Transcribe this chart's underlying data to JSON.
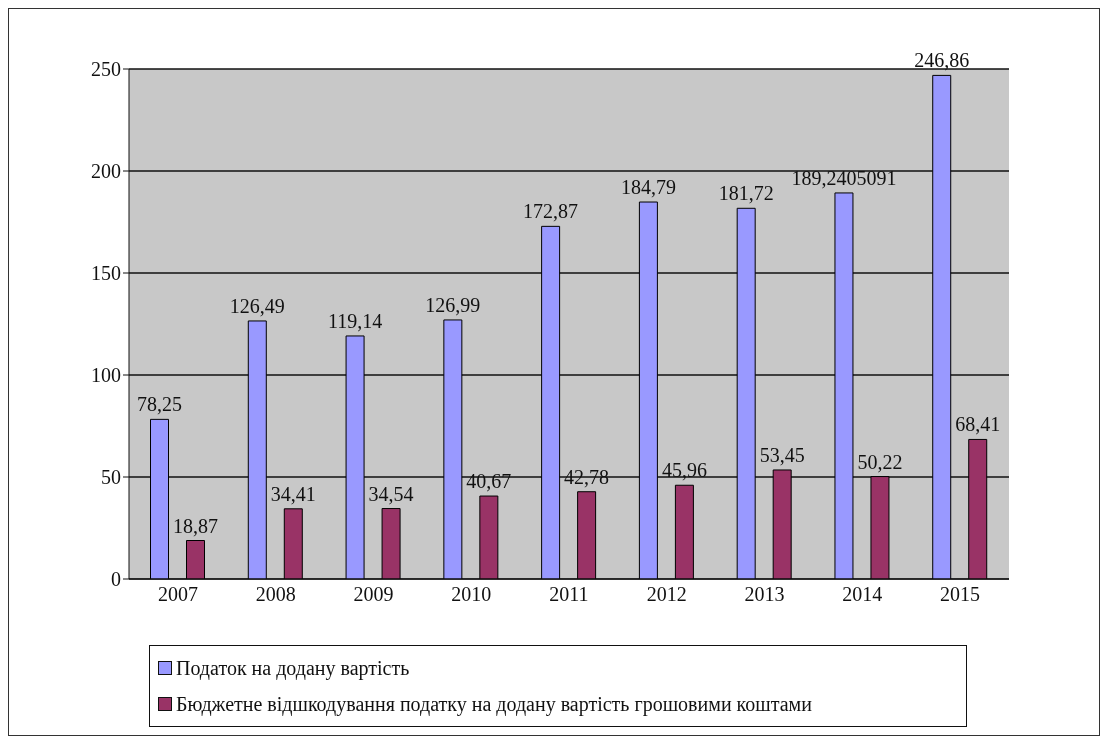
{
  "chart_data": {
    "type": "bar",
    "categories": [
      "2007",
      "2008",
      "2009",
      "2010",
      "2011",
      "2012",
      "2013",
      "2014",
      "2015"
    ],
    "series": [
      {
        "name": "Податок на додану вартість",
        "color": "#9999ff",
        "values": [
          78.25,
          126.49,
          119.14,
          126.99,
          172.87,
          184.79,
          181.72,
          189.2405091,
          246.86
        ],
        "value_labels": [
          "78,25",
          "126,49",
          "119,14",
          "126,99",
          "172,87",
          "184,79",
          "181,72",
          "189,2405091",
          "246,86"
        ]
      },
      {
        "name": "Бюджетне відшкодування  податку на додану вартість грошовими коштами",
        "color": "#993366",
        "values": [
          18.87,
          34.41,
          34.54,
          40.67,
          42.78,
          45.96,
          53.45,
          50.22,
          68.41
        ],
        "value_labels": [
          "18,87",
          "34,41",
          "34,54",
          "40,67",
          "42,78",
          "45,96",
          "53,45",
          "50,22",
          "68,41"
        ]
      }
    ],
    "ylim": [
      0,
      250
    ],
    "yticks": [
      0,
      50,
      100,
      150,
      200,
      250
    ],
    "grid": "y",
    "legend": "bottom"
  }
}
